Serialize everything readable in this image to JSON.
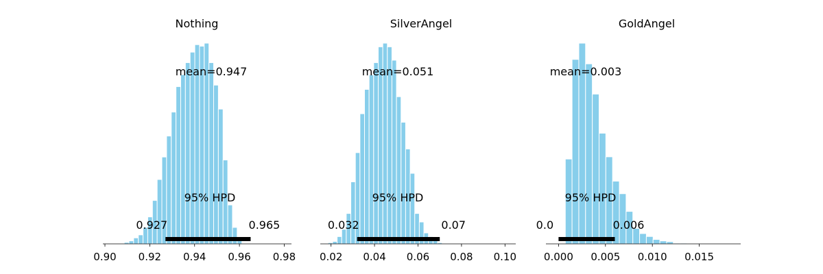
{
  "chart_data": [
    {
      "type": "bar",
      "title": "Nothing",
      "mean_label": "mean=0.947",
      "hpd_label": "95% HPD",
      "hpd": {
        "low": 0.927,
        "high": 0.965,
        "low_label": "0.927",
        "high_label": "0.965"
      },
      "xlim": [
        0.9,
        0.982
      ],
      "xticks": [
        0.9,
        0.92,
        0.94,
        0.96,
        0.98
      ],
      "xtick_labels": [
        "0.90",
        "0.92",
        "0.94",
        "0.96",
        "0.98"
      ],
      "bin_start": 0.9086,
      "bin_width": 0.0021,
      "counts": [
        1,
        2,
        4,
        6,
        11,
        18,
        29,
        43,
        58,
        72,
        88,
        105,
        113,
        121,
        128,
        133,
        132,
        134,
        121,
        106,
        90,
        56,
        26,
        11,
        3
      ],
      "color": "#87ceeb",
      "hpd_color": "#000000"
    },
    {
      "type": "bar",
      "title": "SilverAngel",
      "mean_label": "mean=0.051",
      "hpd_label": "95% HPD",
      "hpd": {
        "low": 0.032,
        "high": 0.07,
        "low_label": "0.032",
        "high_label": "0.07"
      },
      "xlim": [
        0.016,
        0.104
      ],
      "xticks": [
        0.02,
        0.04,
        0.06,
        0.08,
        0.1
      ],
      "xtick_labels": [
        "0.02",
        "0.04",
        "0.06",
        "0.08",
        "0.10"
      ],
      "bin_start": 0.0165,
      "bin_width": 0.0021,
      "counts": [
        0,
        1,
        2,
        6,
        12,
        25,
        51,
        75,
        107,
        127,
        139,
        149,
        162,
        165,
        162,
        151,
        121,
        100,
        78,
        58,
        25,
        18,
        9,
        6,
        3,
        1
      ],
      "color": "#87ceeb",
      "hpd_color": "#000000"
    },
    {
      "type": "bar",
      "title": "GoldAngel",
      "mean_label": "mean=0.003",
      "hpd_label": "95% HPD",
      "hpd": {
        "low": 0.0,
        "high": 0.006,
        "low_label": "0.0",
        "high_label": "0.006"
      },
      "xlim": [
        -0.0012,
        0.0192
      ],
      "xticks": [
        0.0,
        0.005,
        0.01,
        0.015
      ],
      "xtick_labels": [
        "0.000",
        "0.005",
        "0.010",
        "0.015"
      ],
      "bin_start": 0.0,
      "bin_width": 0.00072,
      "counts": [
        0,
        115,
        250,
        272,
        244,
        203,
        150,
        118,
        85,
        68,
        44,
        21,
        14,
        10,
        6,
        4,
        3,
        1,
        1,
        0
      ],
      "color": "#87ceeb",
      "hpd_color": "#000000"
    }
  ]
}
